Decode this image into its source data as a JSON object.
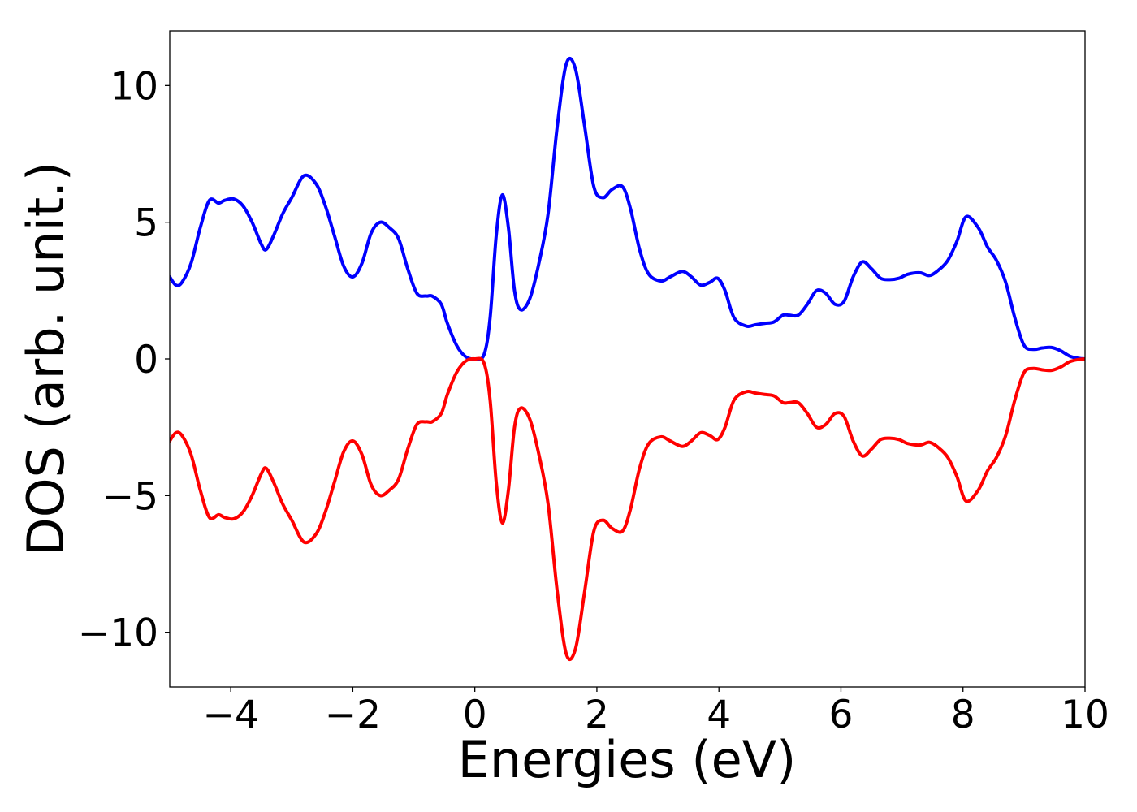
{
  "chart_data": {
    "type": "line",
    "title": "",
    "xlabel": "Energies (eV)",
    "ylabel": "DOS (arb. unit.)",
    "xlim": [
      -5,
      10
    ],
    "ylim": [
      -12,
      12
    ],
    "grid": false,
    "legend": "none",
    "x_ticks": [
      -4,
      -2,
      0,
      2,
      4,
      6,
      8,
      10
    ],
    "x_tick_labels": [
      "−4",
      "−2",
      "0",
      "2",
      "4",
      "6",
      "8",
      "10"
    ],
    "y_ticks": [
      -10,
      -5,
      0,
      5,
      10
    ],
    "y_tick_labels": [
      "−10",
      "−5",
      "0",
      "5",
      "10"
    ],
    "series": [
      {
        "color": "#0000ff",
        "x": [
          -5.0,
          -4.9,
          -4.8,
          -4.65,
          -4.5,
          -4.35,
          -4.2,
          -4.1,
          -3.95,
          -3.8,
          -3.65,
          -3.5,
          -3.42,
          -3.3,
          -3.15,
          -3.0,
          -2.8,
          -2.6,
          -2.45,
          -2.3,
          -2.15,
          -2.0,
          -1.85,
          -1.7,
          -1.55,
          -1.4,
          -1.25,
          -1.1,
          -0.95,
          -0.8,
          -0.7,
          -0.55,
          -0.45,
          -0.3,
          -0.15,
          0.0,
          0.15,
          0.25,
          0.35,
          0.45,
          0.55,
          0.65,
          0.75,
          0.9,
          1.05,
          1.2,
          1.35,
          1.5,
          1.65,
          1.8,
          1.95,
          2.1,
          2.25,
          2.42,
          2.55,
          2.7,
          2.85,
          3.05,
          3.2,
          3.4,
          3.55,
          3.7,
          3.85,
          3.98,
          4.1,
          4.25,
          4.45,
          4.6,
          4.75,
          4.9,
          5.05,
          5.15,
          5.3,
          5.45,
          5.6,
          5.75,
          5.9,
          6.05,
          6.2,
          6.35,
          6.5,
          6.65,
          6.8,
          6.95,
          7.1,
          7.3,
          7.45,
          7.6,
          7.75,
          7.9,
          8.05,
          8.25,
          8.4,
          8.55,
          8.7,
          8.85,
          9.0,
          9.15,
          9.3,
          9.45,
          9.6,
          9.75,
          9.9,
          10.0
        ],
        "y": [
          3.0,
          2.7,
          2.8,
          3.5,
          4.8,
          5.8,
          5.7,
          5.8,
          5.85,
          5.6,
          5.0,
          4.2,
          4.0,
          4.5,
          5.3,
          5.9,
          6.7,
          6.4,
          5.6,
          4.5,
          3.4,
          3.0,
          3.5,
          4.6,
          5.0,
          4.8,
          4.4,
          3.3,
          2.4,
          2.3,
          2.3,
          2.0,
          1.3,
          0.5,
          0.08,
          0.0,
          0.15,
          1.5,
          4.5,
          6.0,
          4.8,
          2.5,
          1.8,
          2.2,
          3.5,
          5.3,
          8.5,
          10.8,
          10.6,
          8.5,
          6.3,
          5.9,
          6.2,
          6.3,
          5.5,
          4.0,
          3.1,
          2.85,
          3.0,
          3.2,
          3.0,
          2.7,
          2.8,
          2.95,
          2.5,
          1.5,
          1.2,
          1.25,
          1.3,
          1.35,
          1.6,
          1.6,
          1.6,
          2.0,
          2.5,
          2.4,
          2.0,
          2.1,
          3.0,
          3.55,
          3.3,
          2.95,
          2.9,
          2.95,
          3.1,
          3.15,
          3.05,
          3.25,
          3.6,
          4.3,
          5.2,
          4.8,
          4.1,
          3.6,
          2.8,
          1.5,
          0.5,
          0.35,
          0.4,
          0.42,
          0.3,
          0.1,
          0.02,
          0.0
        ]
      },
      {
        "color": "#ff0000",
        "x": [
          -5.0,
          -4.9,
          -4.8,
          -4.65,
          -4.5,
          -4.35,
          -4.2,
          -4.1,
          -3.95,
          -3.8,
          -3.65,
          -3.5,
          -3.42,
          -3.3,
          -3.15,
          -3.0,
          -2.8,
          -2.6,
          -2.45,
          -2.3,
          -2.15,
          -2.0,
          -1.85,
          -1.7,
          -1.55,
          -1.4,
          -1.25,
          -1.1,
          -0.95,
          -0.8,
          -0.7,
          -0.55,
          -0.45,
          -0.3,
          -0.15,
          0.0,
          0.15,
          0.25,
          0.35,
          0.45,
          0.55,
          0.65,
          0.75,
          0.9,
          1.05,
          1.2,
          1.35,
          1.5,
          1.65,
          1.8,
          1.95,
          2.1,
          2.25,
          2.42,
          2.55,
          2.7,
          2.85,
          3.05,
          3.2,
          3.4,
          3.55,
          3.7,
          3.85,
          3.98,
          4.1,
          4.25,
          4.45,
          4.6,
          4.75,
          4.9,
          5.05,
          5.15,
          5.3,
          5.45,
          5.6,
          5.75,
          5.9,
          6.05,
          6.2,
          6.35,
          6.5,
          6.65,
          6.8,
          6.95,
          7.1,
          7.3,
          7.45,
          7.6,
          7.75,
          7.9,
          8.05,
          8.25,
          8.4,
          8.55,
          8.7,
          8.85,
          9.0,
          9.15,
          9.3,
          9.45,
          9.6,
          9.75,
          9.9,
          10.0
        ],
        "y": [
          -3.0,
          -2.7,
          -2.8,
          -3.5,
          -4.8,
          -5.8,
          -5.7,
          -5.8,
          -5.85,
          -5.6,
          -5.0,
          -4.2,
          -4.0,
          -4.5,
          -5.3,
          -5.9,
          -6.7,
          -6.4,
          -5.6,
          -4.5,
          -3.4,
          -3.0,
          -3.5,
          -4.6,
          -5.0,
          -4.8,
          -4.4,
          -3.3,
          -2.4,
          -2.3,
          -2.3,
          -2.0,
          -1.3,
          -0.5,
          -0.08,
          0.0,
          -0.15,
          -1.5,
          -4.5,
          -6.0,
          -4.8,
          -2.5,
          -1.8,
          -2.2,
          -3.5,
          -5.3,
          -8.5,
          -10.8,
          -10.6,
          -8.5,
          -6.3,
          -5.9,
          -6.2,
          -6.3,
          -5.5,
          -4.0,
          -3.1,
          -2.85,
          -3.0,
          -3.2,
          -3.0,
          -2.7,
          -2.8,
          -2.95,
          -2.5,
          -1.5,
          -1.2,
          -1.25,
          -1.3,
          -1.35,
          -1.6,
          -1.6,
          -1.6,
          -2.0,
          -2.5,
          -2.4,
          -2.0,
          -2.1,
          -3.0,
          -3.55,
          -3.3,
          -2.95,
          -2.9,
          -2.95,
          -3.1,
          -3.15,
          -3.05,
          -3.25,
          -3.6,
          -4.3,
          -5.2,
          -4.8,
          -4.1,
          -3.6,
          -2.8,
          -1.5,
          -0.5,
          -0.35,
          -0.4,
          -0.42,
          -0.3,
          -0.1,
          -0.02,
          0.0
        ]
      }
    ]
  }
}
